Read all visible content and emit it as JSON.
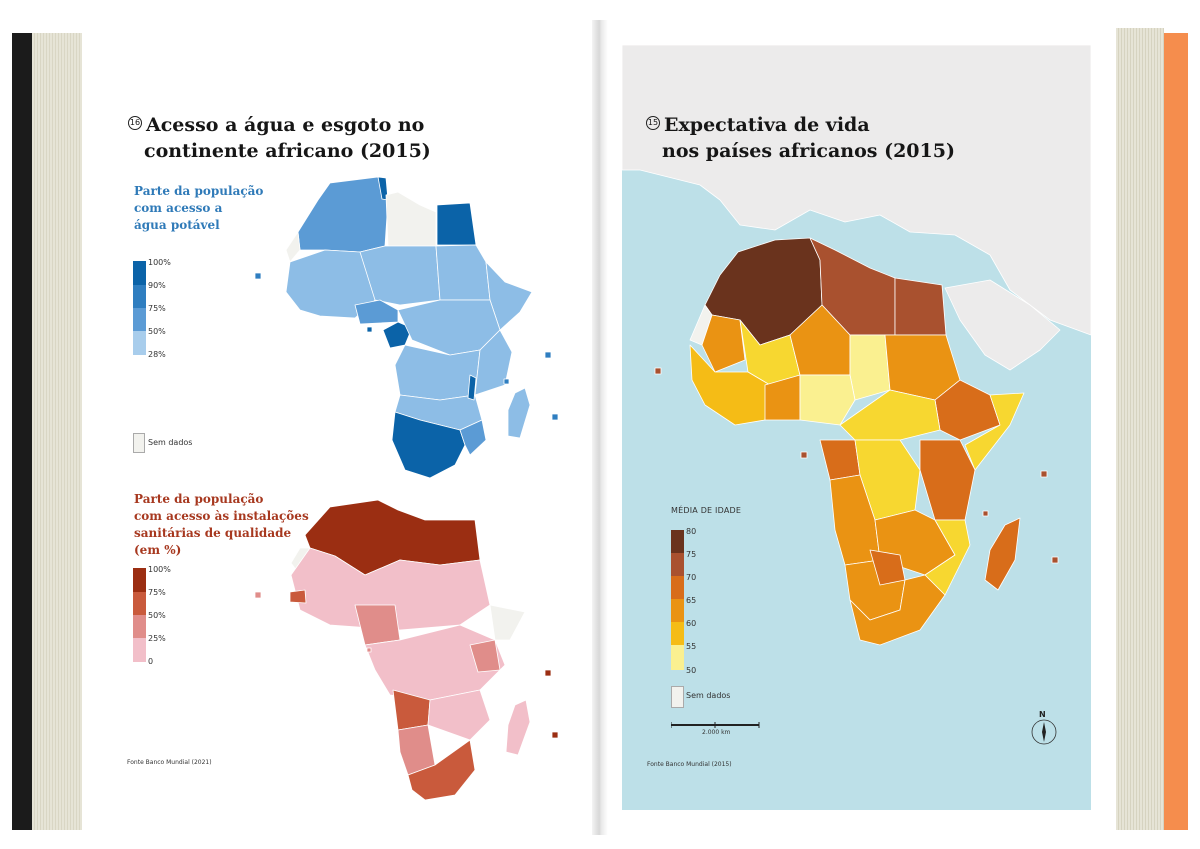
{
  "left_page": {
    "title_line1": "Acesso a água e esgoto no",
    "title_line2": "continente africano (2015)",
    "title_number": "16",
    "water_legend": {
      "title_line1": "Parte da população",
      "title_line2": "com acesso a",
      "title_line3": "água potável",
      "ticks": [
        "100%",
        "90%",
        "75%",
        "50%",
        "28%"
      ],
      "colors": [
        "#0b63a8",
        "#2f7ec0",
        "#5b9bd5",
        "#8dbde6",
        "#b9d9f0"
      ],
      "no_data": "Sem dados"
    },
    "sanitation_legend": {
      "title_line1": "Parte da população",
      "title_line2": "com acesso às instalações",
      "title_line3": "sanitárias de qualidade",
      "title_line4": "(em %)",
      "ticks": [
        "100%",
        "75%",
        "50%",
        "25%",
        "0"
      ],
      "colors": [
        "#9b2e12",
        "#c95a3c",
        "#e08d8a",
        "#efb3be",
        "#f6ccd5"
      ]
    },
    "source": "Fonte Banco Mundial (2021)"
  },
  "right_page": {
    "title_line1": "Expectativa de vida",
    "title_line2": "nos países africanos (2015)",
    "title_number": "15",
    "legend": {
      "title": "MÉDIA DE IDADE",
      "ticks": [
        "80",
        "75",
        "70",
        "65",
        "60",
        "55",
        "50"
      ],
      "colors": [
        "#6a331d",
        "#a9512f",
        "#d86d1a",
        "#ea9313",
        "#f5bc16",
        "#f7d730",
        "#faf090"
      ],
      "no_data": "Sem dados"
    },
    "scale": "2.000 km",
    "north": "N",
    "source": "Fonte Banco Mundial (2015)"
  },
  "colors": {
    "ocean": "#bde0e8",
    "land_other": "#ecebeb",
    "no_data": "#f2f2ee",
    "book_edge_right": "#f58d4d"
  }
}
